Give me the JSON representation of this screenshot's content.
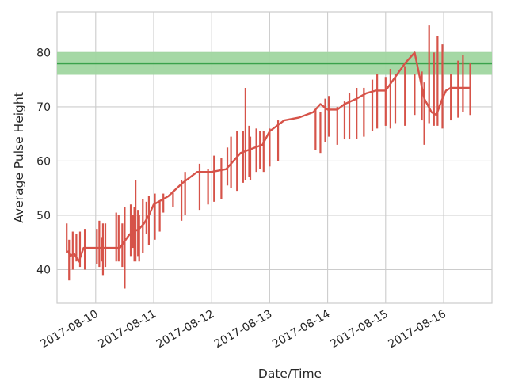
{
  "chart_data": {
    "type": "line",
    "xlabel": "Date/Time",
    "ylabel": "Average Pulse Height",
    "xlim": [
      "2017-08-09T08:00",
      "2017-08-16T20:00"
    ],
    "ylim": [
      33.8,
      87.5
    ],
    "x_tick_labels": [
      "2017-08-10",
      "2017-08-11",
      "2017-08-12",
      "2017-08-13",
      "2017-08-14",
      "2017-08-15",
      "2017-08-16"
    ],
    "y_ticks": [
      40,
      50,
      60,
      70,
      80
    ],
    "grid": true,
    "colors": {
      "series": "#d65349",
      "reference": "#3aa24b",
      "band": "#a0d6a0",
      "grid": "#cccccc"
    },
    "reference_line": {
      "y": 78,
      "band": [
        75.9,
        80.1
      ]
    },
    "series": [
      {
        "x": [
          "2017-08-09T12:30",
          "2017-08-09T13:30",
          "2017-08-09T15:00",
          "2017-08-09T17:00",
          "2017-08-09T19:00",
          "2017-08-10T00:00",
          "2017-08-10T02:00",
          "2017-08-10T03:30",
          "2017-08-10T06:00",
          "2017-08-10T10:00",
          "2017-08-10T14:00",
          "2017-08-10T18:00",
          "2017-08-10T20:00",
          "2017-08-10T22:00",
          "2017-08-11T00:00",
          "2017-08-11T06:00",
          "2017-08-11T12:00",
          "2017-08-11T18:00",
          "2017-08-12T00:00",
          "2017-08-12T06:00",
          "2017-08-12T12:00",
          "2017-08-12T15:00",
          "2017-08-12T18:00",
          "2017-08-12T21:00",
          "2017-08-13T00:00",
          "2017-08-13T06:00",
          "2017-08-13T12:00",
          "2017-08-13T18:00",
          "2017-08-13T21:00",
          "2017-08-14T00:00",
          "2017-08-14T04:00",
          "2017-08-14T07:00",
          "2017-08-14T12:00",
          "2017-08-14T16:00",
          "2017-08-14T20:00",
          "2017-08-15T00:00",
          "2017-08-15T04:00",
          "2017-08-15T08:00",
          "2017-08-15T12:00",
          "2017-08-15T16:00",
          "2017-08-15T19:00",
          "2017-08-15T21:00",
          "2017-08-15T23:00",
          "2017-08-16T01:00",
          "2017-08-16T03:00",
          "2017-08-16T06:00",
          "2017-08-16T08:00",
          "2017-08-16T11:00"
        ],
        "y": [
          43.5,
          42.5,
          43.0,
          41.5,
          44.0,
          44.0,
          44.0,
          44.0,
          44.0,
          44.0,
          46.5,
          47.5,
          48.5,
          50.0,
          52.0,
          53.5,
          56.0,
          58.0,
          58.0,
          58.5,
          61.5,
          62.0,
          62.5,
          63.0,
          65.5,
          67.5,
          68.0,
          69.0,
          70.5,
          69.5,
          69.5,
          70.5,
          71.5,
          72.5,
          73.0,
          73.0,
          75.5,
          78.0,
          80.0,
          71.5,
          69.0,
          68.5,
          71.0,
          73.0,
          73.5,
          73.5,
          73.5,
          73.5
        ],
        "error_bars": [
          {
            "x": "2017-08-09T12:00",
            "low": 43.0,
            "high": 48.5
          },
          {
            "x": "2017-08-09T13:00",
            "low": 38.0,
            "high": 45.5
          },
          {
            "x": "2017-08-09T14:30",
            "low": 40.0,
            "high": 47.0
          },
          {
            "x": "2017-08-09T16:00",
            "low": 41.5,
            "high": 46.5
          },
          {
            "x": "2017-08-09T17:30",
            "low": 40.5,
            "high": 47.0
          },
          {
            "x": "2017-08-09T19:30",
            "low": 40.0,
            "high": 47.5
          },
          {
            "x": "2017-08-10T00:30",
            "low": 41.0,
            "high": 47.5
          },
          {
            "x": "2017-08-10T01:30",
            "low": 40.5,
            "high": 49.0
          },
          {
            "x": "2017-08-10T02:30",
            "low": 41.5,
            "high": 46.0
          },
          {
            "x": "2017-08-10T03:00",
            "low": 39.0,
            "high": 48.5
          },
          {
            "x": "2017-08-10T04:00",
            "low": 40.5,
            "high": 48.5
          },
          {
            "x": "2017-08-10T08:30",
            "low": 41.5,
            "high": 50.5
          },
          {
            "x": "2017-08-10T09:30",
            "low": 41.5,
            "high": 50.0
          },
          {
            "x": "2017-08-10T11:00",
            "low": 40.5,
            "high": 48.5
          },
          {
            "x": "2017-08-10T12:00",
            "low": 36.5,
            "high": 51.5
          },
          {
            "x": "2017-08-10T14:30",
            "low": 42.5,
            "high": 52.0
          },
          {
            "x": "2017-08-10T15:30",
            "low": 44.0,
            "high": 50.0
          },
          {
            "x": "2017-08-10T16:00",
            "low": 41.5,
            "high": 51.5
          },
          {
            "x": "2017-08-10T16:30",
            "low": 41.5,
            "high": 56.5
          },
          {
            "x": "2017-08-10T17:30",
            "low": 42.5,
            "high": 51.0
          },
          {
            "x": "2017-08-10T18:00",
            "low": 41.5,
            "high": 50.0
          },
          {
            "x": "2017-08-10T19:30",
            "low": 43.0,
            "high": 53.0
          },
          {
            "x": "2017-08-10T21:00",
            "low": 46.5,
            "high": 52.5
          },
          {
            "x": "2017-08-10T22:00",
            "low": 44.5,
            "high": 53.5
          },
          {
            "x": "2017-08-11T00:30",
            "low": 45.5,
            "high": 54.0
          },
          {
            "x": "2017-08-11T02:30",
            "low": 47.0,
            "high": 52.5
          },
          {
            "x": "2017-08-11T04:00",
            "low": 50.5,
            "high": 54.0
          },
          {
            "x": "2017-08-11T08:00",
            "low": 51.5,
            "high": 54.5
          },
          {
            "x": "2017-08-11T11:30",
            "low": 49.0,
            "high": 56.5
          },
          {
            "x": "2017-08-11T13:00",
            "low": 50.0,
            "high": 58.0
          },
          {
            "x": "2017-08-11T19:00",
            "low": 51.0,
            "high": 59.5
          },
          {
            "x": "2017-08-11T22:30",
            "low": 52.0,
            "high": 58.5
          },
          {
            "x": "2017-08-12T01:00",
            "low": 52.5,
            "high": 61.0
          },
          {
            "x": "2017-08-12T04:00",
            "low": 53.0,
            "high": 60.5
          },
          {
            "x": "2017-08-12T06:30",
            "low": 55.5,
            "high": 62.5
          },
          {
            "x": "2017-08-12T08:00",
            "low": 55.0,
            "high": 64.5
          },
          {
            "x": "2017-08-12T10:30",
            "low": 54.5,
            "high": 65.5
          },
          {
            "x": "2017-08-12T13:00",
            "low": 56.0,
            "high": 65.5
          },
          {
            "x": "2017-08-12T14:00",
            "low": 56.5,
            "high": 73.5
          },
          {
            "x": "2017-08-12T15:30",
            "low": 57.0,
            "high": 66.5
          },
          {
            "x": "2017-08-12T16:00",
            "low": 56.5,
            "high": 64.5
          },
          {
            "x": "2017-08-12T18:30",
            "low": 58.0,
            "high": 66.0
          },
          {
            "x": "2017-08-12T20:00",
            "low": 58.5,
            "high": 65.5
          },
          {
            "x": "2017-08-12T21:30",
            "low": 58.0,
            "high": 65.5
          },
          {
            "x": "2017-08-13T00:00",
            "low": 59.0,
            "high": 66.0
          },
          {
            "x": "2017-08-13T03:30",
            "low": 60.0,
            "high": 67.5
          },
          {
            "x": "2017-08-13T19:00",
            "low": 62.0,
            "high": 69.5
          },
          {
            "x": "2017-08-13T21:00",
            "low": 61.5,
            "high": 69.0
          },
          {
            "x": "2017-08-13T23:00",
            "low": 63.5,
            "high": 71.5
          },
          {
            "x": "2017-08-14T00:30",
            "low": 64.5,
            "high": 72.0
          },
          {
            "x": "2017-08-14T04:00",
            "low": 63.0,
            "high": 70.0
          },
          {
            "x": "2017-08-14T07:00",
            "low": 64.0,
            "high": 71.0
          },
          {
            "x": "2017-08-14T09:00",
            "low": 64.0,
            "high": 72.5
          },
          {
            "x": "2017-08-14T12:00",
            "low": 64.0,
            "high": 73.5
          },
          {
            "x": "2017-08-14T15:00",
            "low": 64.5,
            "high": 73.5
          },
          {
            "x": "2017-08-14T18:30",
            "low": 65.5,
            "high": 75.0
          },
          {
            "x": "2017-08-14T20:30",
            "low": 66.0,
            "high": 76.0
          },
          {
            "x": "2017-08-15T00:00",
            "low": 66.5,
            "high": 75.5
          },
          {
            "x": "2017-08-15T02:00",
            "low": 66.0,
            "high": 77.0
          },
          {
            "x": "2017-08-15T04:00",
            "low": 67.0,
            "high": 76.0
          },
          {
            "x": "2017-08-15T08:00",
            "low": 66.5,
            "high": 77.5
          },
          {
            "x": "2017-08-15T12:00",
            "low": 68.5,
            "high": 76.0
          },
          {
            "x": "2017-08-15T15:00",
            "low": 67.5,
            "high": 76.5
          },
          {
            "x": "2017-08-15T16:00",
            "low": 63.0,
            "high": 74.5
          },
          {
            "x": "2017-08-15T18:00",
            "low": 67.0,
            "high": 85.0
          },
          {
            "x": "2017-08-15T20:00",
            "low": 66.5,
            "high": 80.0
          },
          {
            "x": "2017-08-15T21:30",
            "low": 66.5,
            "high": 83.0
          },
          {
            "x": "2017-08-15T23:30",
            "low": 66.0,
            "high": 81.5
          },
          {
            "x": "2017-08-16T03:00",
            "low": 67.5,
            "high": 76.0
          },
          {
            "x": "2017-08-16T06:00",
            "low": 68.0,
            "high": 78.5
          },
          {
            "x": "2017-08-16T08:00",
            "low": 69.0,
            "high": 79.5
          },
          {
            "x": "2017-08-16T11:00",
            "low": 68.5,
            "high": 78.0
          }
        ]
      }
    ]
  }
}
